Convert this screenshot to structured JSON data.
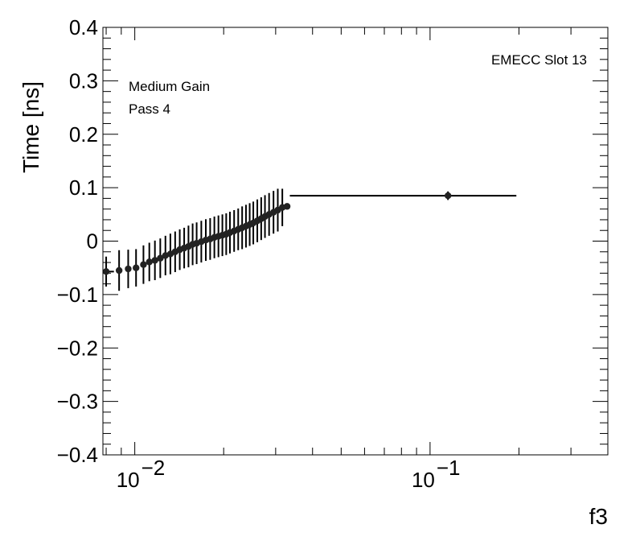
{
  "chart_data": {
    "type": "scatter",
    "xlabel": "f3",
    "ylabel": "Time [ns]",
    "xscale": "log",
    "xlim": [
      0.0078,
      0.4
    ],
    "ylim": [
      -0.4,
      0.4
    ],
    "x_major_ticks": [
      {
        "value": 0.01,
        "base": "10",
        "exp": "−2"
      },
      {
        "value": 0.1,
        "base": "10",
        "exp": "−1"
      }
    ],
    "y_ticks": [
      {
        "value": 0.4,
        "label": "0.4"
      },
      {
        "value": 0.3,
        "label": "0.3"
      },
      {
        "value": 0.2,
        "label": "0.2"
      },
      {
        "value": 0.1,
        "label": "0.1"
      },
      {
        "value": 0.0,
        "label": "0"
      },
      {
        "value": -0.1,
        "label": "−0.1"
      },
      {
        "value": -0.2,
        "label": "−0.2"
      },
      {
        "value": -0.3,
        "label": "−0.3"
      },
      {
        "value": -0.4,
        "label": "−0.4"
      }
    ],
    "annotations": {
      "slot": "EMECC Slot 13",
      "gain": "Medium Gain",
      "pass": "Pass 4"
    },
    "points": [
      {
        "x": 0.008,
        "y": -0.057,
        "yerr": 0.028,
        "xlo": 0.0078,
        "xhi": 0.0085
      },
      {
        "x": 0.00885,
        "y": -0.055,
        "yerr": 0.038
      },
      {
        "x": 0.0095,
        "y": -0.052,
        "yerr": 0.036
      },
      {
        "x": 0.0101,
        "y": -0.05,
        "yerr": 0.035
      },
      {
        "x": 0.0107,
        "y": -0.044,
        "yerr": 0.036
      },
      {
        "x": 0.0112,
        "y": -0.039,
        "yerr": 0.036
      },
      {
        "x": 0.0117,
        "y": -0.036,
        "yerr": 0.037
      },
      {
        "x": 0.0122,
        "y": -0.032,
        "yerr": 0.037
      },
      {
        "x": 0.0127,
        "y": -0.027,
        "yerr": 0.037
      },
      {
        "x": 0.0132,
        "y": -0.024,
        "yerr": 0.038
      },
      {
        "x": 0.0137,
        "y": -0.02,
        "yerr": 0.038
      },
      {
        "x": 0.0142,
        "y": -0.016,
        "yerr": 0.038
      },
      {
        "x": 0.0147,
        "y": -0.013,
        "yerr": 0.038
      },
      {
        "x": 0.0152,
        "y": -0.01,
        "yerr": 0.039
      },
      {
        "x": 0.0157,
        "y": -0.006,
        "yerr": 0.039
      },
      {
        "x": 0.0162,
        "y": -0.004,
        "yerr": 0.039
      },
      {
        "x": 0.0168,
        "y": -0.001,
        "yerr": 0.039
      },
      {
        "x": 0.0174,
        "y": 0.002,
        "yerr": 0.039
      },
      {
        "x": 0.018,
        "y": 0.004,
        "yerr": 0.039
      },
      {
        "x": 0.0186,
        "y": 0.007,
        "yerr": 0.039
      },
      {
        "x": 0.0192,
        "y": 0.009,
        "yerr": 0.039
      },
      {
        "x": 0.0198,
        "y": 0.011,
        "yerr": 0.039
      },
      {
        "x": 0.0204,
        "y": 0.013,
        "yerr": 0.039
      },
      {
        "x": 0.021,
        "y": 0.016,
        "yerr": 0.039
      },
      {
        "x": 0.0217,
        "y": 0.019,
        "yerr": 0.039
      },
      {
        "x": 0.0224,
        "y": 0.022,
        "yerr": 0.039
      },
      {
        "x": 0.0231,
        "y": 0.025,
        "yerr": 0.04
      },
      {
        "x": 0.0238,
        "y": 0.028,
        "yerr": 0.04
      },
      {
        "x": 0.0245,
        "y": 0.031,
        "yerr": 0.04
      },
      {
        "x": 0.0252,
        "y": 0.034,
        "yerr": 0.04
      },
      {
        "x": 0.026,
        "y": 0.038,
        "yerr": 0.04
      },
      {
        "x": 0.0268,
        "y": 0.042,
        "yerr": 0.04
      },
      {
        "x": 0.0276,
        "y": 0.046,
        "yerr": 0.04
      },
      {
        "x": 0.0285,
        "y": 0.05,
        "yerr": 0.04
      },
      {
        "x": 0.0295,
        "y": 0.054,
        "yerr": 0.04
      },
      {
        "x": 0.0305,
        "y": 0.058,
        "yerr": 0.04
      },
      {
        "x": 0.0316,
        "y": 0.063,
        "yerr": 0.035
      },
      {
        "x": 0.0328,
        "y": 0.065,
        "yerr": 0.0
      },
      {
        "x": 0.115,
        "y": 0.085,
        "yerr": 0.008,
        "xlo": 0.0335,
        "xhi": 0.196
      }
    ]
  }
}
